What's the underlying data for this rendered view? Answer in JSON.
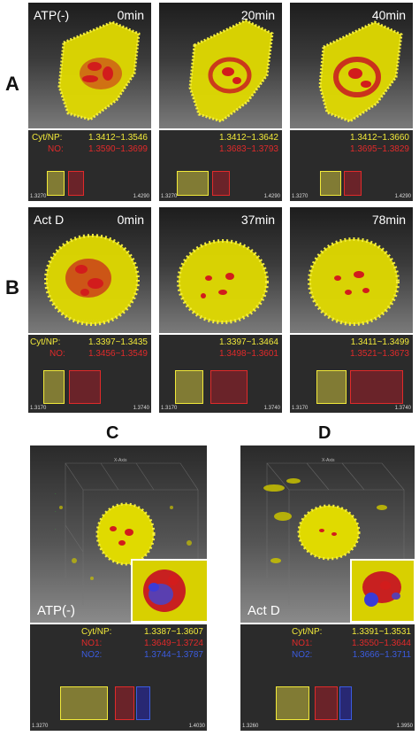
{
  "row_labels": [
    "A",
    "B"
  ],
  "panel_letters": {
    "c": "C",
    "d": "D"
  },
  "row_a": {
    "condition": "ATP(-)",
    "frames": [
      {
        "time": "0min",
        "range1": "1.3412~1.3546",
        "range2": "1.3590~1.3699"
      },
      {
        "time": "20min",
        "range1": "1.3412~1.3642",
        "range2": "1.3683~1.3793"
      },
      {
        "time": "40min",
        "range1": "1.3412~1.3660",
        "range2": "1.3695~1.3829"
      }
    ],
    "legend_label1": "Cyt/NP:",
    "legend_label2": "NO:",
    "scale_min": "1.3270",
    "scale_max": "1.4290"
  },
  "row_b": {
    "condition": "Act D",
    "frames": [
      {
        "time": "0min",
        "range1": "1.3397~1.3435",
        "range2": "1.3456~1.3549"
      },
      {
        "time": "37min",
        "range1": "1.3397~1.3464",
        "range2": "1.3498~1.3601"
      },
      {
        "time": "78min",
        "range1": "1.3411~1.3499",
        "range2": "1.3521~1.3673"
      }
    ],
    "legend_label1": "Cyt/NP:",
    "legend_label2": "NO:",
    "scale_min": "1.3170",
    "scale_max": "1.3740"
  },
  "panel_c": {
    "condition": "ATP(-)",
    "axis_label": "X-Axis",
    "label1": "Cyt/NP:",
    "range1": "1.3387~1.3607",
    "label2": "NO1:",
    "range2": "1.3649~1.3724",
    "label3": "NO2:",
    "range3": "1.3744~1.3787",
    "scale_min": "1.3270",
    "scale_max": "1.4030"
  },
  "panel_d": {
    "condition": "Act D",
    "axis_label": "X-Axis",
    "label1": "Cyt/NP:",
    "range1": "1.3391~1.3531",
    "label2": "NO1:",
    "range2": "1.3550~1.3644",
    "label3": "NO2:",
    "range3": "1.3666~1.3711",
    "scale_min": "1.3260",
    "scale_max": "1.3950"
  },
  "colors": {
    "cytoplasm": "#e6e000",
    "nucleolus": "#d21c1c",
    "nucleolus2": "#3b3bd6",
    "legend_yellow": "#f2ea3a",
    "legend_red": "#e02a2a",
    "legend_blue": "#3b5ce0"
  }
}
